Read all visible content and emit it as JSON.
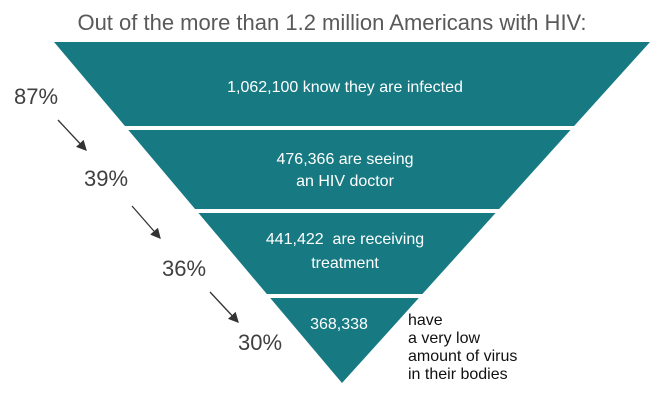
{
  "title": "Out of the more than 1.2 million Americans with HIV:",
  "colors": {
    "funnel": "#177a82",
    "text_on_funnel": "#ffffff",
    "arrow": "#333333"
  },
  "stages": [
    {
      "percent": "87%",
      "lines": [
        "1,062,100 know they are infected"
      ]
    },
    {
      "percent": "39%",
      "lines": [
        "476,366 are seeing",
        "an HIV doctor"
      ]
    },
    {
      "percent": "36%",
      "lines": [
        "441,422  are receiving",
        "treatment"
      ]
    },
    {
      "percent": "30%",
      "lines": [
        "368,338"
      ]
    }
  ],
  "last_stage_note": [
    "have",
    "a very low",
    "amount of virus",
    "in their bodies"
  ]
}
